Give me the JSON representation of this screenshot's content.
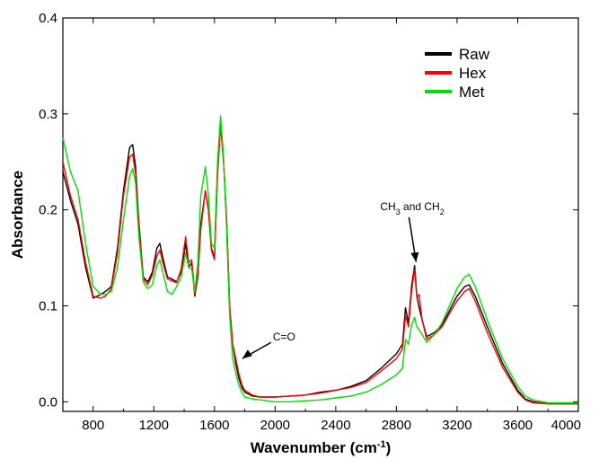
{
  "chart_data": {
    "type": "line",
    "xlabel": "Wavenumber (cm",
    "xlabel_sup": "-1",
    "xlabel_tail": ")",
    "ylabel": "Absorbance",
    "xlim": [
      600,
      4000
    ],
    "ylim": [
      -0.01,
      0.4
    ],
    "xticks": [
      "800",
      "1200",
      "1600",
      "2000",
      "2400",
      "2800",
      "3200",
      "3600",
      "4000"
    ],
    "yticks": [
      "0.0",
      "0.1",
      "0.2",
      "0.3",
      "0.4"
    ],
    "legend_position": "top-right",
    "series": [
      {
        "name": "Raw",
        "color": "#000000",
        "x": [
          600,
          650,
          700,
          750,
          800,
          850,
          880,
          920,
          960,
          1000,
          1040,
          1060,
          1080,
          1100,
          1130,
          1160,
          1190,
          1220,
          1240,
          1260,
          1290,
          1320,
          1350,
          1380,
          1410,
          1430,
          1450,
          1470,
          1490,
          1510,
          1540,
          1560,
          1580,
          1600,
          1620,
          1640,
          1660,
          1680,
          1700,
          1720,
          1740,
          1760,
          1780,
          1800,
          1850,
          1900,
          2000,
          2100,
          2200,
          2300,
          2400,
          2500,
          2600,
          2700,
          2800,
          2840,
          2860,
          2880,
          2900,
          2920,
          2935,
          2950,
          2970,
          3000,
          3050,
          3100,
          3150,
          3200,
          3250,
          3280,
          3320,
          3400,
          3500,
          3600,
          3650,
          3700,
          3800,
          4000
        ],
        "y": [
          0.24,
          0.21,
          0.185,
          0.14,
          0.108,
          0.112,
          0.115,
          0.12,
          0.16,
          0.22,
          0.265,
          0.268,
          0.245,
          0.19,
          0.13,
          0.125,
          0.135,
          0.16,
          0.165,
          0.15,
          0.13,
          0.128,
          0.125,
          0.135,
          0.165,
          0.14,
          0.145,
          0.11,
          0.13,
          0.185,
          0.22,
          0.2,
          0.16,
          0.15,
          0.24,
          0.29,
          0.25,
          0.19,
          0.1,
          0.06,
          0.04,
          0.025,
          0.015,
          0.01,
          0.006,
          0.005,
          0.005,
          0.006,
          0.007,
          0.01,
          0.012,
          0.016,
          0.022,
          0.035,
          0.05,
          0.06,
          0.098,
          0.082,
          0.12,
          0.142,
          0.11,
          0.098,
          0.085,
          0.068,
          0.072,
          0.08,
          0.095,
          0.11,
          0.12,
          0.122,
          0.11,
          0.078,
          0.04,
          0.012,
          0.003,
          0.0,
          -0.002,
          -0.002
        ]
      },
      {
        "name": "Hex",
        "color": "#ff0000",
        "x": [
          600,
          650,
          700,
          750,
          800,
          850,
          880,
          920,
          960,
          1000,
          1040,
          1060,
          1080,
          1100,
          1130,
          1160,
          1190,
          1220,
          1240,
          1260,
          1290,
          1320,
          1350,
          1380,
          1410,
          1430,
          1450,
          1470,
          1490,
          1510,
          1540,
          1560,
          1580,
          1600,
          1620,
          1640,
          1660,
          1680,
          1700,
          1720,
          1740,
          1760,
          1780,
          1800,
          1850,
          1900,
          2000,
          2100,
          2200,
          2300,
          2400,
          2500,
          2600,
          2700,
          2800,
          2840,
          2860,
          2880,
          2900,
          2920,
          2935,
          2950,
          2970,
          3000,
          3050,
          3100,
          3150,
          3200,
          3250,
          3280,
          3320,
          3400,
          3500,
          3600,
          3650,
          3700,
          3800,
          4000
        ],
        "y": [
          0.25,
          0.215,
          0.19,
          0.145,
          0.11,
          0.108,
          0.11,
          0.118,
          0.155,
          0.215,
          0.255,
          0.258,
          0.238,
          0.185,
          0.128,
          0.122,
          0.132,
          0.152,
          0.158,
          0.145,
          0.128,
          0.126,
          0.124,
          0.138,
          0.172,
          0.145,
          0.148,
          0.112,
          0.132,
          0.18,
          0.22,
          0.2,
          0.158,
          0.148,
          0.235,
          0.288,
          0.25,
          0.19,
          0.1,
          0.06,
          0.045,
          0.03,
          0.018,
          0.012,
          0.007,
          0.005,
          0.005,
          0.006,
          0.007,
          0.009,
          0.012,
          0.015,
          0.02,
          0.032,
          0.045,
          0.055,
          0.09,
          0.078,
          0.115,
          0.138,
          0.108,
          0.112,
          0.085,
          0.065,
          0.07,
          0.078,
          0.092,
          0.105,
          0.115,
          0.118,
          0.105,
          0.072,
          0.036,
          0.01,
          0.002,
          -0.001,
          -0.002,
          -0.002
        ]
      },
      {
        "name": "Met",
        "color": "#00e000",
        "x": [
          600,
          650,
          700,
          750,
          800,
          850,
          880,
          920,
          960,
          1000,
          1040,
          1060,
          1080,
          1100,
          1130,
          1160,
          1190,
          1220,
          1240,
          1260,
          1290,
          1320,
          1350,
          1380,
          1410,
          1430,
          1450,
          1470,
          1490,
          1510,
          1540,
          1560,
          1580,
          1600,
          1620,
          1640,
          1660,
          1680,
          1700,
          1720,
          1740,
          1760,
          1780,
          1800,
          1850,
          1900,
          2000,
          2100,
          2200,
          2300,
          2400,
          2500,
          2600,
          2700,
          2800,
          2840,
          2860,
          2880,
          2900,
          2920,
          2935,
          2950,
          2970,
          3000,
          3050,
          3100,
          3150,
          3200,
          3250,
          3280,
          3320,
          3400,
          3500,
          3600,
          3650,
          3700,
          3800,
          4000
        ],
        "y": [
          0.275,
          0.24,
          0.22,
          0.165,
          0.12,
          0.112,
          0.112,
          0.115,
          0.14,
          0.19,
          0.235,
          0.243,
          0.228,
          0.175,
          0.125,
          0.118,
          0.122,
          0.142,
          0.148,
          0.135,
          0.115,
          0.112,
          0.12,
          0.13,
          0.155,
          0.14,
          0.138,
          0.115,
          0.145,
          0.215,
          0.245,
          0.215,
          0.165,
          0.16,
          0.25,
          0.298,
          0.255,
          0.18,
          0.09,
          0.045,
          0.03,
          0.018,
          0.01,
          0.005,
          0.003,
          0.002,
          0.0,
          0.0,
          0.001,
          0.002,
          0.004,
          0.006,
          0.01,
          0.018,
          0.028,
          0.035,
          0.065,
          0.06,
          0.08,
          0.088,
          0.078,
          0.075,
          0.07,
          0.062,
          0.07,
          0.082,
          0.1,
          0.118,
          0.13,
          0.133,
          0.12,
          0.085,
          0.045,
          0.016,
          0.006,
          0.002,
          -0.001,
          -0.001
        ]
      }
    ],
    "annotations": {
      "ch": {
        "pre": "CH",
        "sub1": "3",
        "mid": " and CH",
        "sub2": "2",
        "x": 2930,
        "y": 0.14
      },
      "co": {
        "text": "C=O",
        "x": 1760,
        "y": 0.045
      }
    }
  }
}
